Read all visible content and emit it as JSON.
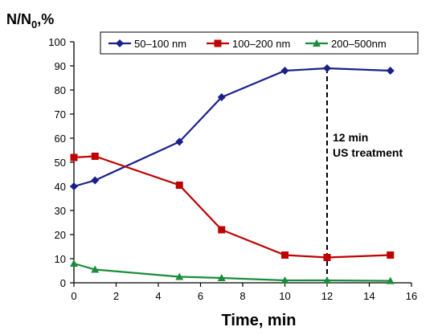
{
  "chart_data": {
    "type": "line",
    "xlabel": "Time, min",
    "ylabel_main": "N/N",
    "ylabel_sub": "0",
    "ylabel_suffix": ",%",
    "xlim": [
      0,
      16
    ],
    "ylim": [
      0,
      100
    ],
    "xticks": [
      0,
      2,
      4,
      6,
      8,
      10,
      12,
      14,
      16
    ],
    "yticks": [
      0,
      10,
      20,
      30,
      40,
      50,
      60,
      70,
      80,
      90,
      100
    ],
    "grid": false,
    "legend_position": "top",
    "series": [
      {
        "name": "50–100 nm",
        "color": "#1a1f8c",
        "marker": "diamond",
        "x": [
          0,
          1,
          5,
          7,
          10,
          12,
          15
        ],
        "y": [
          40,
          42.5,
          58.5,
          77,
          88,
          89,
          88
        ]
      },
      {
        "name": "100–200 nm",
        "color": "#c00000",
        "marker": "square",
        "x": [
          0,
          1,
          5,
          7,
          10,
          12,
          15
        ],
        "y": [
          52,
          52.5,
          40.5,
          22,
          11.5,
          10.5,
          11.5
        ]
      },
      {
        "name": "200–500nm",
        "color": "#1a8c3a",
        "marker": "triangle",
        "x": [
          0,
          1,
          5,
          7,
          10,
          12,
          15
        ],
        "y": [
          8,
          5.5,
          2.5,
          2,
          1,
          1,
          0.8
        ]
      }
    ],
    "annotation": {
      "x": 12,
      "line_style": "dashed",
      "lines": [
        "12 min",
        "US treatment"
      ]
    }
  }
}
